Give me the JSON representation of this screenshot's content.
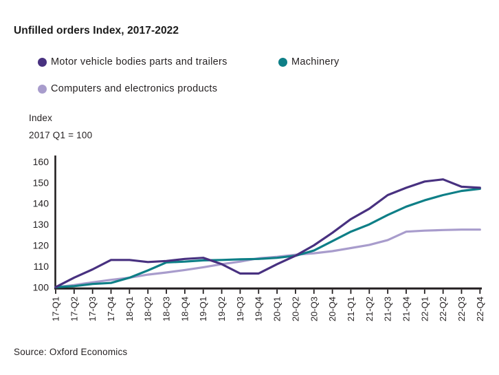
{
  "title": "Unfilled orders Index, 2017-2022",
  "y_axis_note": {
    "line1": "Index",
    "line2": "2017 Q1 = 100"
  },
  "source": "Source: Oxford Economics",
  "colors": {
    "motor_vehicle": "#483180",
    "machinery": "#0E7F87",
    "computers": "#A89CCC",
    "axis": "#231f20"
  },
  "chart_data": {
    "type": "line",
    "title": "Unfilled orders Index, 2017-2022",
    "xlabel": "",
    "ylabel": "Index, 2017 Q1 = 100",
    "ylim": [
      100,
      162
    ],
    "y_ticks": [
      100,
      110,
      120,
      130,
      140,
      150,
      160
    ],
    "grid": false,
    "legend_position": "top",
    "categories": [
      "17-Q1",
      "17-Q2",
      "17-Q3",
      "17-Q4",
      "18-Q1",
      "18-Q2",
      "18-Q3",
      "18-Q4",
      "19-Q1",
      "19-Q2",
      "19-Q3",
      "19-Q4",
      "20-Q1",
      "20-Q2",
      "20-Q3",
      "20-Q4",
      "21-Q1",
      "21-Q2",
      "21-Q3",
      "21-Q4",
      "22-Q1",
      "22-Q2",
      "22-Q3",
      "22-Q4"
    ],
    "series": [
      {
        "name": "Motor vehicle bodies parts and trailers",
        "color": "#483180",
        "values": [
          100,
          104.5,
          108.5,
          113,
          113,
          112,
          112.5,
          113.5,
          114,
          111,
          106.5,
          106.5,
          111,
          115,
          120,
          126,
          132.5,
          137.5,
          144,
          147.5,
          150.5,
          151.5,
          148,
          147.5
        ]
      },
      {
        "name": "Machinery",
        "color": "#0E7F87",
        "values": [
          100,
          100.5,
          101.5,
          102,
          104.5,
          108,
          111.8,
          112.2,
          112.8,
          113,
          113.3,
          113.5,
          114,
          115,
          117.5,
          122,
          126.5,
          130,
          134.5,
          138.5,
          141.5,
          144,
          146,
          147
        ]
      },
      {
        "name": "Computers and electronics products",
        "color": "#A89CCC",
        "values": [
          100,
          101,
          102.3,
          103.5,
          104.5,
          106,
          107,
          108.2,
          109.5,
          111,
          112.2,
          113.8,
          114.5,
          115.5,
          116.2,
          117.2,
          118.7,
          120.2,
          122.5,
          126.5,
          127,
          127.3,
          127.5,
          127.5
        ]
      }
    ]
  }
}
